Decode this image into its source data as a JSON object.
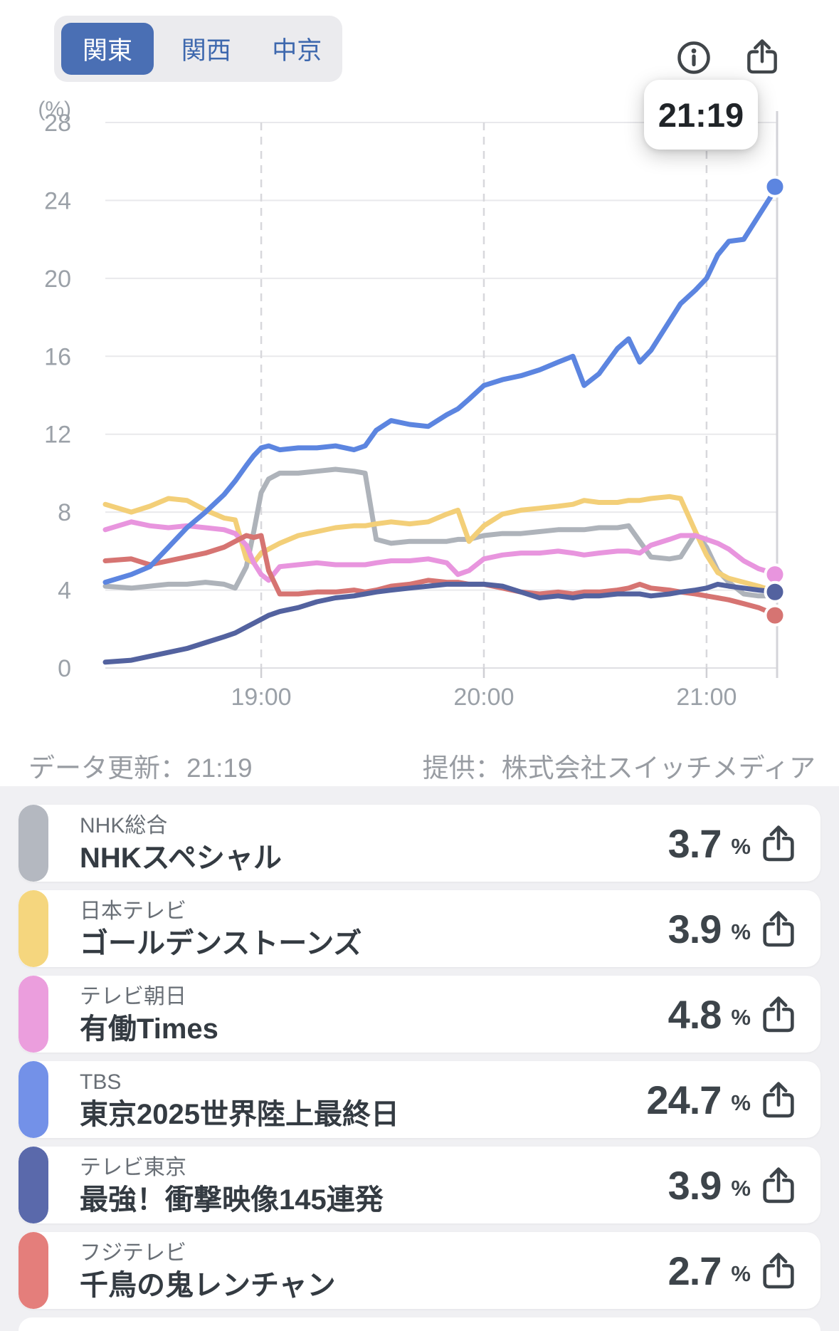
{
  "tabs": {
    "selected_index": 0,
    "items": [
      {
        "label": "関東"
      },
      {
        "label": "関西"
      },
      {
        "label": "中京"
      }
    ]
  },
  "header_icons": {
    "info": "circle-info-icon",
    "share": "share-arrow-up-icon"
  },
  "tooltip": {
    "time": "21:19"
  },
  "footer": {
    "updated": "データ更新：21:19",
    "provider": "提供：株式会社スイッチメディア"
  },
  "chart_data": {
    "type": "line",
    "ylabel": "(%)",
    "ylim": [
      0,
      28
    ],
    "y_ticks": [
      0,
      4,
      8,
      12,
      16,
      20,
      24,
      28
    ],
    "x_tick_labels": [
      "19:00",
      "20:00",
      "21:00"
    ],
    "x_range": [
      "18:18",
      "21:19"
    ],
    "grid": true,
    "current_time": "21:19",
    "x": [
      "18:18",
      "18:25",
      "18:30",
      "18:35",
      "18:40",
      "18:45",
      "18:50",
      "18:53",
      "18:56",
      "18:58",
      "19:00",
      "19:02",
      "19:05",
      "19:10",
      "19:15",
      "19:20",
      "19:25",
      "19:28",
      "19:31",
      "19:35",
      "19:40",
      "19:45",
      "19:50",
      "19:53",
      "19:56",
      "20:00",
      "20:05",
      "20:10",
      "20:15",
      "20:20",
      "20:24",
      "20:27",
      "20:31",
      "20:36",
      "20:39",
      "20:42",
      "20:45",
      "20:50",
      "20:53",
      "20:57",
      "21:00",
      "21:03",
      "21:06",
      "21:10",
      "21:14",
      "21:19"
    ],
    "series": [
      {
        "name": "NHK総合",
        "color": "#aeb3ba",
        "end_dot": false,
        "final": 3.7,
        "values": [
          4.2,
          4.1,
          4.2,
          4.3,
          4.3,
          4.4,
          4.3,
          4.1,
          5.2,
          7.0,
          9.0,
          9.7,
          10.0,
          10.0,
          10.1,
          10.2,
          10.1,
          10.0,
          6.6,
          6.4,
          6.5,
          6.5,
          6.5,
          6.6,
          6.6,
          6.8,
          6.9,
          6.9,
          7.0,
          7.1,
          7.1,
          7.1,
          7.2,
          7.2,
          7.3,
          6.5,
          5.7,
          5.6,
          5.7,
          6.9,
          6.2,
          5.0,
          4.4,
          3.8,
          3.7,
          3.7
        ]
      },
      {
        "name": "日本テレビ",
        "color": "#f3cf78",
        "end_dot": false,
        "final": 3.9,
        "values": [
          8.4,
          8.0,
          8.3,
          8.7,
          8.6,
          8.1,
          7.7,
          7.6,
          5.6,
          5.4,
          5.9,
          6.1,
          6.4,
          6.8,
          7.0,
          7.2,
          7.3,
          7.3,
          7.4,
          7.5,
          7.4,
          7.5,
          7.9,
          8.1,
          6.5,
          7.3,
          7.9,
          8.1,
          8.2,
          8.3,
          8.4,
          8.6,
          8.5,
          8.5,
          8.6,
          8.6,
          8.7,
          8.8,
          8.7,
          7.0,
          5.8,
          4.9,
          4.6,
          4.4,
          4.2,
          3.9
        ]
      },
      {
        "name": "テレビ朝日",
        "color": "#e895de",
        "end_dot": true,
        "final": 4.8,
        "values": [
          7.1,
          7.5,
          7.3,
          7.2,
          7.3,
          7.2,
          7.1,
          6.9,
          6.3,
          5.4,
          4.8,
          4.5,
          5.2,
          5.3,
          5.4,
          5.3,
          5.3,
          5.3,
          5.4,
          5.5,
          5.5,
          5.6,
          5.4,
          4.8,
          5.0,
          5.6,
          5.8,
          5.9,
          5.9,
          6.0,
          5.9,
          5.8,
          5.9,
          6.0,
          6.0,
          5.9,
          6.3,
          6.6,
          6.8,
          6.8,
          6.6,
          6.4,
          6.1,
          5.5,
          5.1,
          4.8
        ]
      },
      {
        "name": "TBS",
        "color": "#5c85e0",
        "end_dot": true,
        "final": 24.7,
        "values": [
          4.4,
          4.8,
          5.2,
          6.2,
          7.2,
          8.0,
          8.9,
          9.6,
          10.4,
          10.9,
          11.3,
          11.4,
          11.2,
          11.3,
          11.3,
          11.4,
          11.2,
          11.4,
          12.2,
          12.7,
          12.5,
          12.4,
          13.0,
          13.3,
          13.8,
          14.5,
          14.8,
          15.0,
          15.3,
          15.7,
          16.0,
          14.5,
          15.1,
          16.4,
          16.9,
          15.7,
          16.3,
          17.8,
          18.7,
          19.4,
          20.0,
          21.2,
          21.9,
          22.0,
          23.2,
          24.7
        ]
      },
      {
        "name": "テレビ東京",
        "color": "#53629f",
        "end_dot": true,
        "final": 3.9,
        "values": [
          0.3,
          0.4,
          0.6,
          0.8,
          1.0,
          1.3,
          1.6,
          1.8,
          2.1,
          2.3,
          2.5,
          2.7,
          2.9,
          3.1,
          3.4,
          3.6,
          3.7,
          3.8,
          3.9,
          4.0,
          4.1,
          4.2,
          4.3,
          4.3,
          4.3,
          4.3,
          4.2,
          3.9,
          3.6,
          3.7,
          3.6,
          3.7,
          3.7,
          3.8,
          3.8,
          3.8,
          3.7,
          3.8,
          3.9,
          4.0,
          4.1,
          4.3,
          4.2,
          4.1,
          4.0,
          3.9
        ]
      },
      {
        "name": "フジテレビ",
        "color": "#d67472",
        "end_dot": true,
        "final": 2.7,
        "values": [
          5.5,
          5.6,
          5.3,
          5.5,
          5.7,
          5.9,
          6.2,
          6.5,
          6.8,
          6.7,
          6.8,
          5.0,
          3.8,
          3.8,
          3.9,
          3.9,
          4.0,
          3.9,
          4.0,
          4.2,
          4.3,
          4.5,
          4.4,
          4.4,
          4.3,
          4.3,
          4.1,
          3.9,
          3.8,
          3.9,
          3.8,
          3.9,
          3.9,
          4.0,
          4.1,
          4.3,
          4.1,
          4.0,
          3.9,
          3.8,
          3.7,
          3.6,
          3.5,
          3.3,
          3.1,
          2.7
        ]
      }
    ]
  },
  "legend": {
    "items": [
      {
        "channel": "NHK総合",
        "program": "NHKスペシャル",
        "value": "3.7",
        "unit": "%",
        "color": "#b4b8c0"
      },
      {
        "channel": "日本テレビ",
        "program": "ゴールデンストーンズ",
        "value": "3.9",
        "unit": "%",
        "color": "#f5d67e"
      },
      {
        "channel": "テレビ朝日",
        "program": "有働Times",
        "value": "4.8",
        "unit": "%",
        "color": "#eb9edd"
      },
      {
        "channel": "TBS",
        "program": "東京2025世界陸上最終日",
        "value": "24.7",
        "unit": "%",
        "color": "#7391e8"
      },
      {
        "channel": "テレビ東京",
        "program": "最強！衝撃映像145連発",
        "value": "3.9",
        "unit": "%",
        "color": "#5a69ab"
      },
      {
        "channel": "フジテレビ",
        "program": "千鳥の鬼レンチャン",
        "value": "2.7",
        "unit": "%",
        "color": "#e47e7b"
      }
    ]
  }
}
